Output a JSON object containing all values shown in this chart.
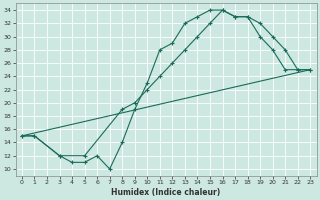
{
  "xlabel": "Humidex (Indice chaleur)",
  "xlim": [
    -0.5,
    23.5
  ],
  "ylim": [
    9,
    35
  ],
  "xticks": [
    0,
    1,
    2,
    3,
    4,
    5,
    6,
    7,
    8,
    9,
    10,
    11,
    12,
    13,
    14,
    15,
    16,
    17,
    18,
    19,
    20,
    21,
    22,
    23
  ],
  "yticks": [
    10,
    12,
    14,
    16,
    18,
    20,
    22,
    24,
    26,
    28,
    30,
    32,
    34
  ],
  "background_color": "#cce8e0",
  "grid_color": "#b0d4cc",
  "line_color": "#1a6b5a",
  "curve1_x": [
    0,
    1,
    3,
    4,
    5,
    6,
    7,
    8,
    9,
    10,
    11,
    12,
    13,
    14,
    15,
    16,
    17,
    18,
    19,
    20,
    21,
    22,
    23
  ],
  "curve1_y": [
    15,
    15,
    12,
    11,
    11,
    12,
    10,
    14,
    19,
    23,
    28,
    29,
    32,
    33,
    34,
    34,
    33,
    33,
    30,
    28,
    25,
    25,
    25
  ],
  "curve2_x": [
    0,
    1,
    3,
    5,
    8,
    9,
    10,
    11,
    12,
    13,
    14,
    15,
    16,
    17,
    18,
    19,
    20,
    21,
    22,
    23
  ],
  "curve2_y": [
    15,
    15,
    12,
    12,
    19,
    20,
    22,
    24,
    26,
    28,
    30,
    32,
    34,
    33,
    33,
    32,
    30,
    28,
    25,
    25
  ],
  "curve3_x": [
    0,
    23
  ],
  "curve3_y": [
    15,
    25
  ]
}
